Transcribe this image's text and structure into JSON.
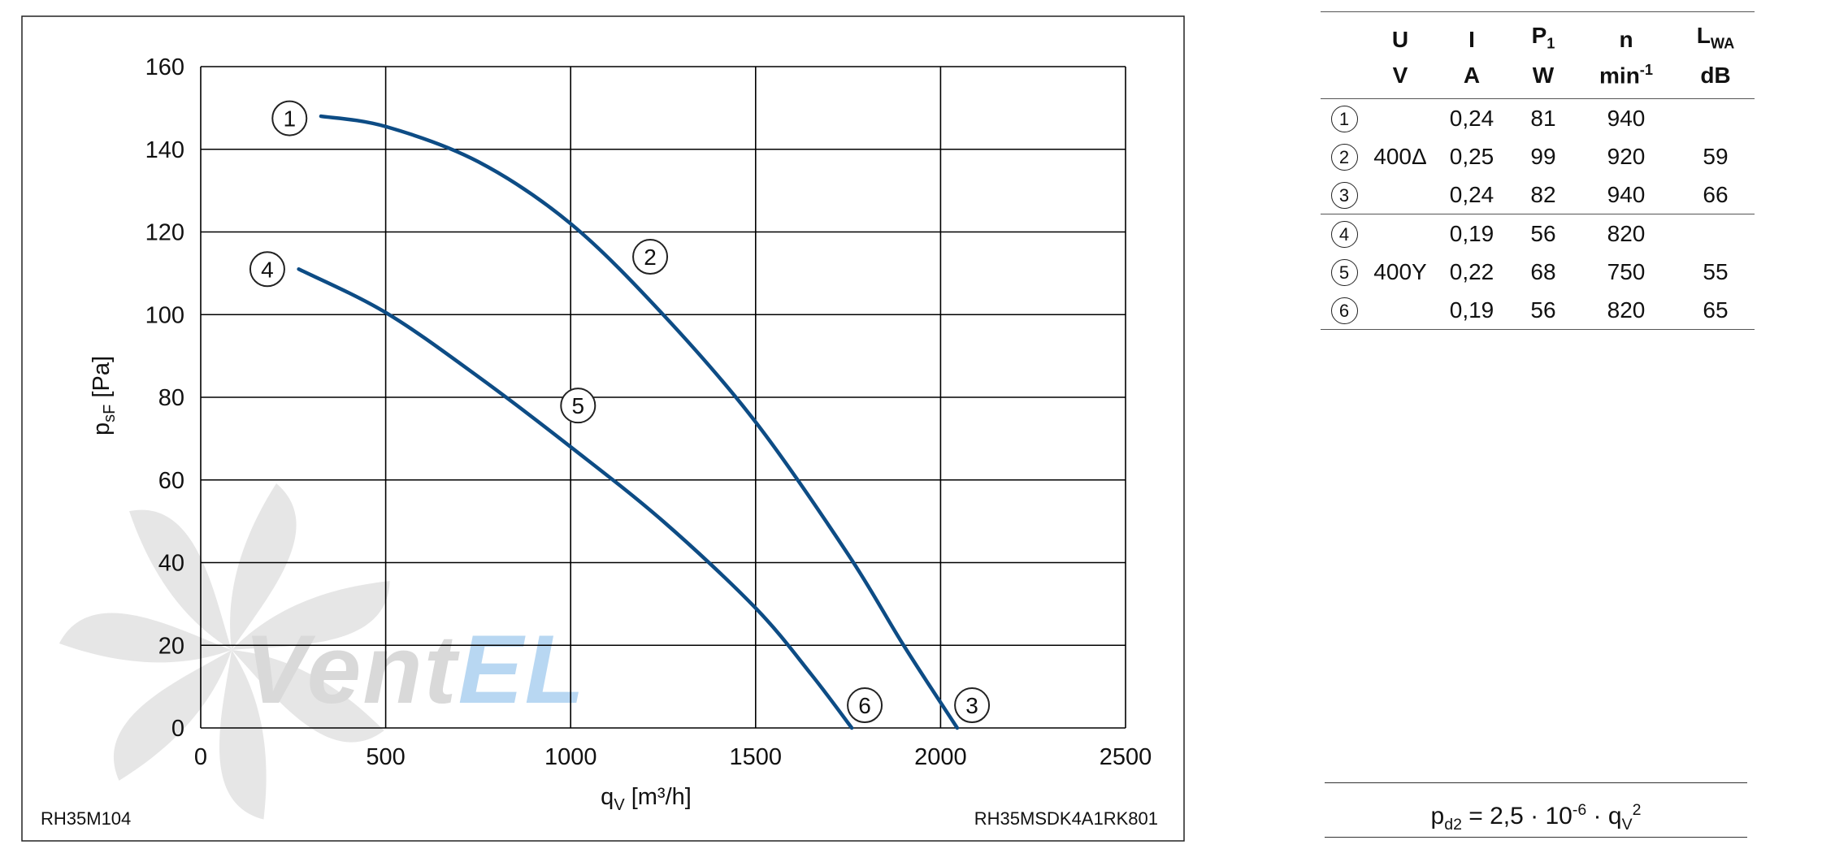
{
  "chart_data": {
    "type": "line",
    "xlabel": "q_V [m³/h]",
    "ylabel": "p_sF [Pa]",
    "xlim": [
      0,
      2500
    ],
    "ylim": [
      0,
      160
    ],
    "x_ticks": [
      "0",
      "500",
      "1000",
      "1500",
      "2000",
      "2500"
    ],
    "y_ticks": [
      "0",
      "20",
      "40",
      "60",
      "80",
      "100",
      "120",
      "140",
      "160"
    ],
    "grid": true,
    "series": [
      {
        "name": "",
        "color": "#0d4c85",
        "x": [
          325,
          500,
          750,
          1000,
          1250,
          1500,
          1750,
          1900,
          2045
        ],
        "y": [
          148,
          145.5,
          137,
          122,
          100,
          74,
          42,
          20,
          0
        ]
      },
      {
        "name": "",
        "color": "#0d4c85",
        "x": [
          265,
          500,
          750,
          1000,
          1250,
          1500,
          1650,
          1760
        ],
        "y": [
          111,
          100.5,
          85,
          68,
          50,
          29,
          13,
          0
        ]
      }
    ],
    "point_labels": [
      {
        "text": "1",
        "x": 240,
        "y": 147.5
      },
      {
        "text": "2",
        "x": 1215,
        "y": 114
      },
      {
        "text": "3",
        "x": 2085,
        "y": 5.5
      },
      {
        "text": "4",
        "x": 180,
        "y": 111
      },
      {
        "text": "5",
        "x": 1020,
        "y": 78
      },
      {
        "text": "6",
        "x": 1795,
        "y": 5.5
      }
    ],
    "footer_left": "RH35M104",
    "footer_right": "RH35MSDK4A1RK801",
    "watermark": "VentEL"
  },
  "table": {
    "header_top": [
      "U",
      "I",
      "P",
      "n",
      "L"
    ],
    "header_top_sub": [
      "",
      "",
      "1",
      "",
      "WA"
    ],
    "header_units": [
      "V",
      "A",
      "W",
      "min",
      "dB"
    ],
    "header_units_sup": [
      "",
      "",
      "",
      "-1",
      ""
    ],
    "rows": [
      {
        "id": "1",
        "U": "",
        "I": "0,24",
        "P": "81",
        "n": "940",
        "L": ""
      },
      {
        "id": "2",
        "U": "400Δ",
        "I": "0,25",
        "P": "99",
        "n": "920",
        "L": "59"
      },
      {
        "id": "3",
        "U": "",
        "I": "0,24",
        "P": "82",
        "n": "940",
        "L": "66"
      },
      {
        "id": "4",
        "U": "",
        "I": "0,19",
        "P": "56",
        "n": "820",
        "L": ""
      },
      {
        "id": "5",
        "U": "400Y",
        "I": "0,22",
        "P": "68",
        "n": "750",
        "L": "55"
      },
      {
        "id": "6",
        "U": "",
        "I": "0,19",
        "P": "56",
        "n": "820",
        "L": "65"
      }
    ]
  },
  "formula": {
    "lhs": "p",
    "lhs_sub": "d2",
    "mid": " = 2,5 · 10",
    "exp": "-6",
    "dot": " · q",
    "q_sub": "V",
    "q_sup": "2"
  },
  "colors": {
    "curve": "#0d4c85",
    "grid": "#000000",
    "watermark_gray": "#bbbbbb",
    "watermark_blue": "#7fb8e8"
  }
}
